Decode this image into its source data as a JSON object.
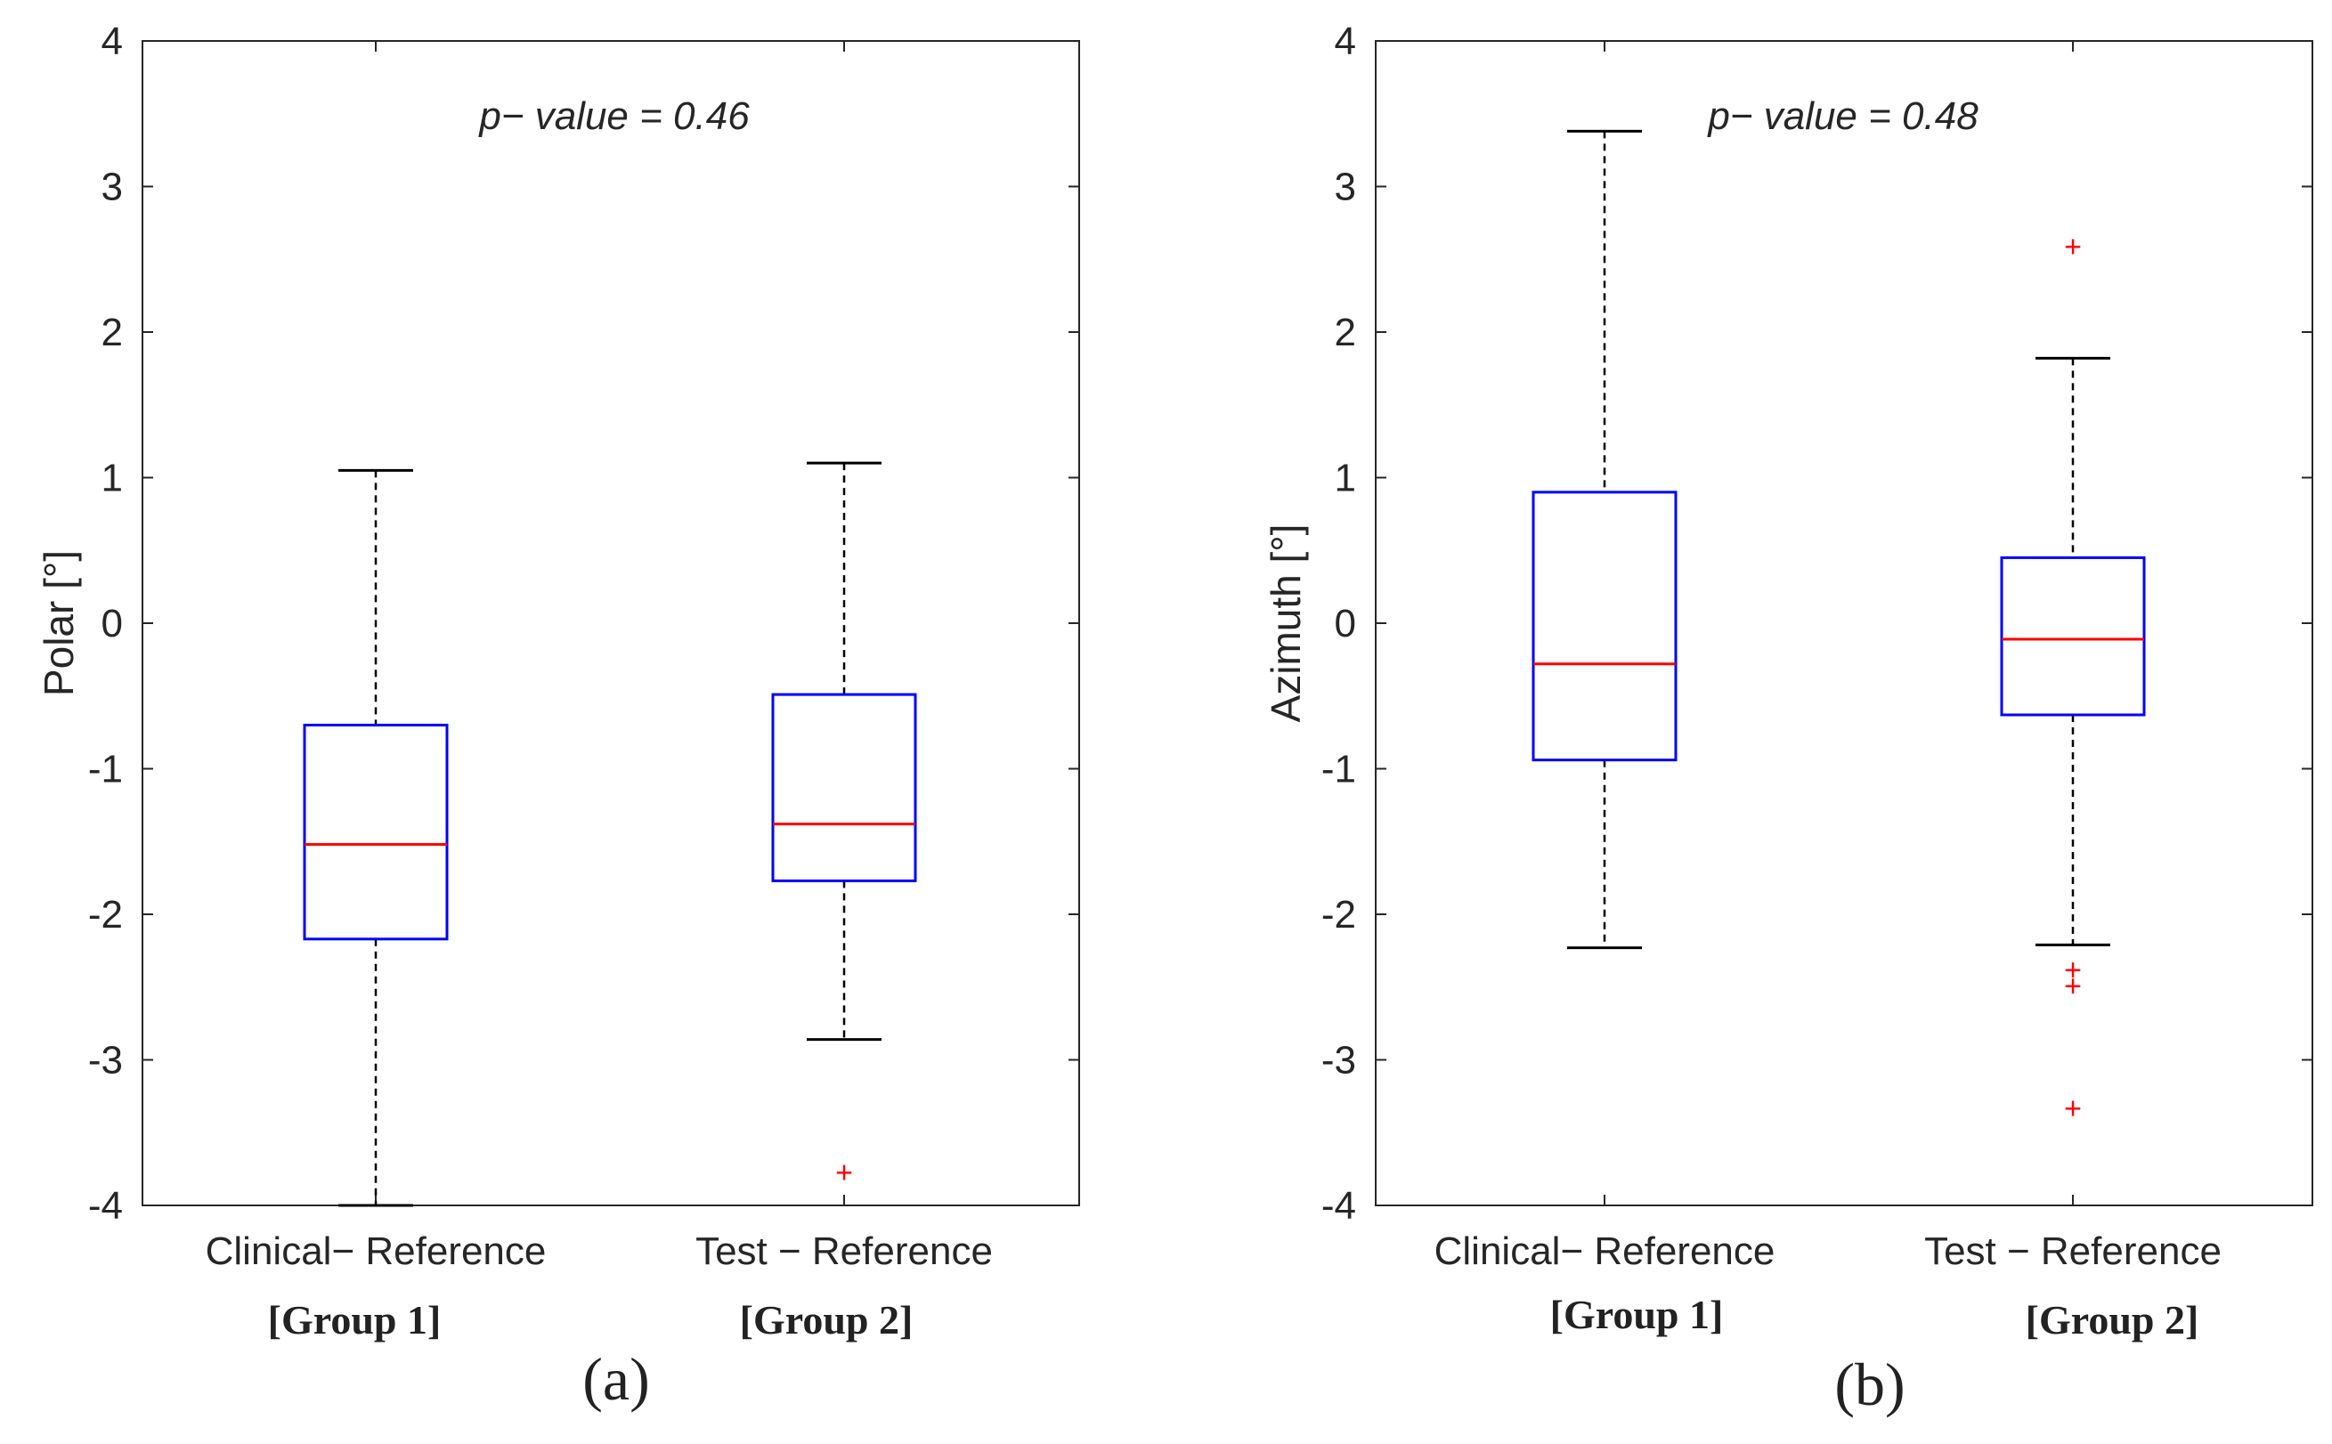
{
  "chart_data": [
    {
      "type": "boxplot",
      "panel_label": "(a)",
      "annotation": "p− value = 0.46",
      "ylabel": "Polar [°]",
      "ylim": [
        -4,
        4
      ],
      "yticks": [
        "4",
        "3",
        "2",
        "1",
        "0",
        "-1",
        "-2",
        "-3",
        "-4"
      ],
      "ytick_values": [
        4,
        3,
        2,
        1,
        0,
        -1,
        -2,
        -3,
        -4
      ],
      "categories": [
        "Clinical− Reference",
        "Test − Reference"
      ],
      "groups": [
        "[Group 1]",
        "[Group 2]"
      ],
      "boxes": [
        {
          "whisker_low": -4.0,
          "q1": -2.17,
          "median": -1.52,
          "q3": -0.7,
          "whisker_high": 1.05,
          "outliers": []
        },
        {
          "whisker_low": -2.86,
          "q1": -1.77,
          "median": -1.38,
          "q3": -0.49,
          "whisker_high": 1.1,
          "outliers": [
            -3.77
          ]
        }
      ]
    },
    {
      "type": "boxplot",
      "panel_label": "(b)",
      "annotation": "p− value = 0.48",
      "ylabel": "Azimuth [°]",
      "ylim": [
        -4,
        4
      ],
      "yticks": [
        "4",
        "3",
        "2",
        "1",
        "0",
        "-1",
        "-2",
        "-3",
        "-4"
      ],
      "ytick_values": [
        4,
        3,
        2,
        1,
        0,
        -1,
        -2,
        -3,
        -4
      ],
      "categories": [
        "Clinical− Reference",
        "Test − Reference"
      ],
      "groups": [
        "[Group 1]",
        "[Group 2]"
      ],
      "boxes": [
        {
          "whisker_low": -2.23,
          "q1": -0.94,
          "median": -0.28,
          "q3": 0.9,
          "whisker_high": 3.38,
          "outliers": []
        },
        {
          "whisker_low": -2.21,
          "q1": -0.63,
          "median": -0.11,
          "q3": 0.45,
          "whisker_high": 1.82,
          "outliers": [
            2.59,
            -2.38,
            -2.49,
            -3.33
          ]
        }
      ]
    }
  ],
  "colors": {
    "box": "#0000ff",
    "median": "#ff0000",
    "whisker": "#000000",
    "outlier": "#ff0000",
    "axis": "#262626"
  }
}
